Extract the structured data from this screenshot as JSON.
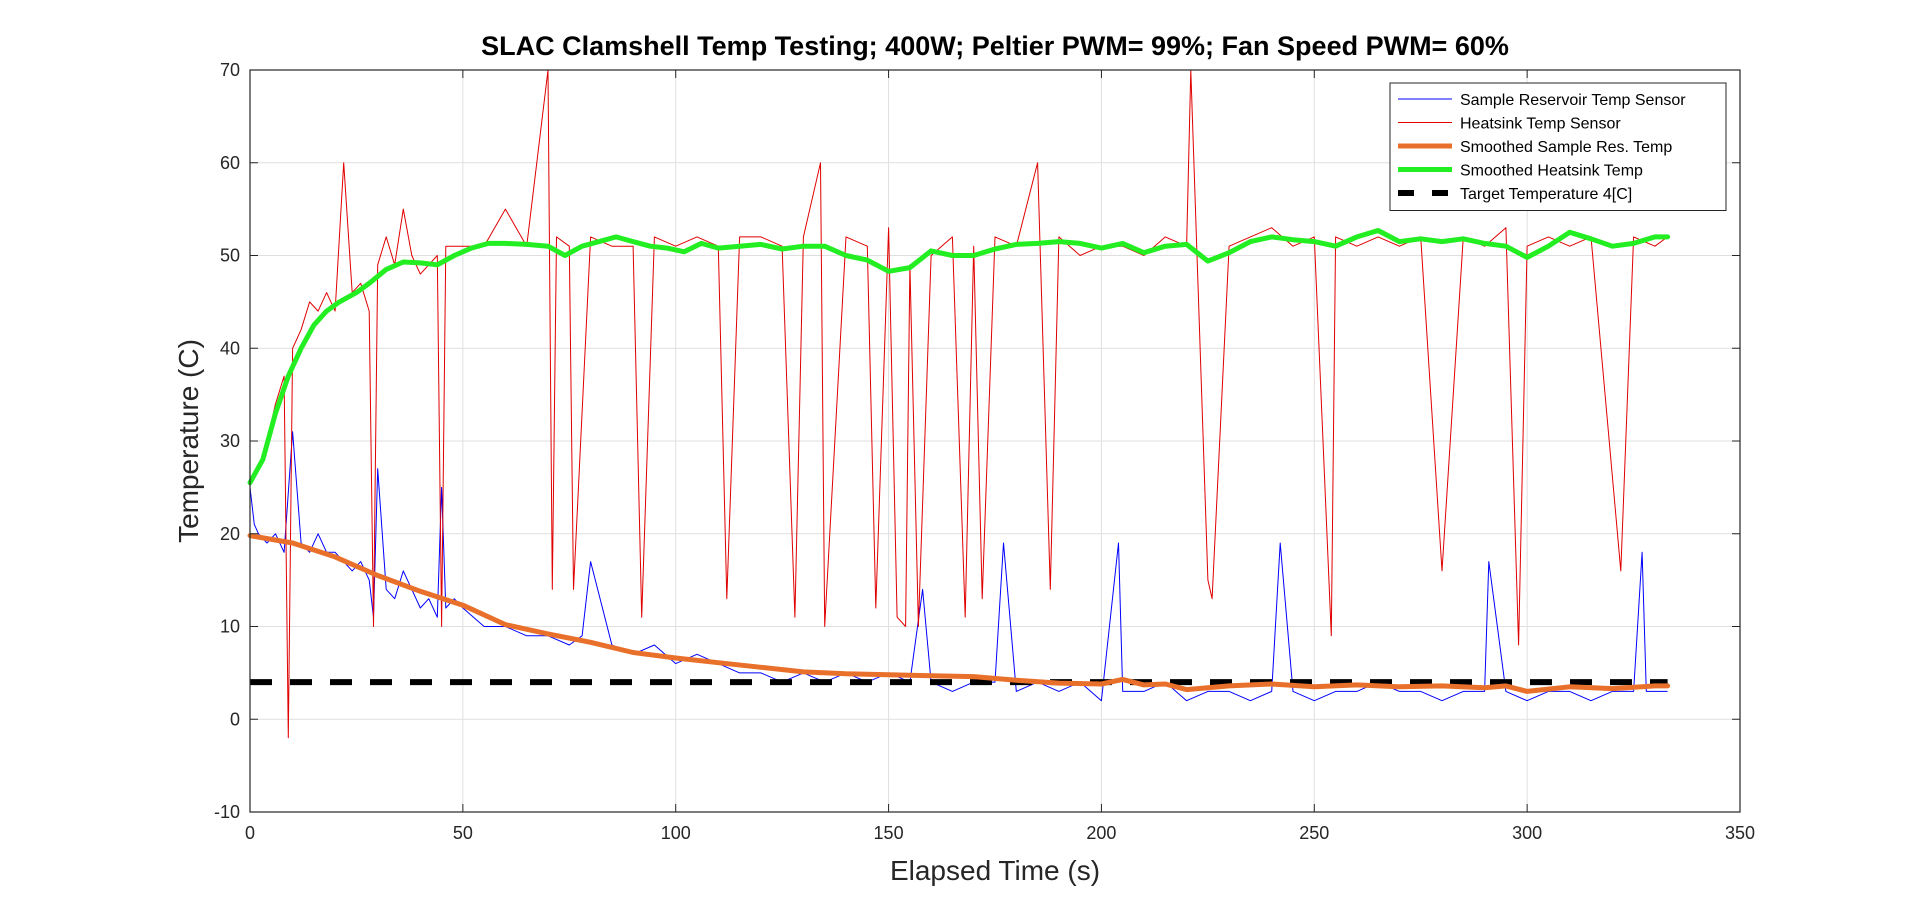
{
  "chart_data": {
    "type": "line",
    "title": "SLAC Clamshell Temp Testing; 400W; Peltier PWM= 99%; Fan Speed PWM= 60%",
    "xlabel": "Elapsed Time (s)",
    "ylabel": "Temperature (C)",
    "xlim": [
      0,
      350
    ],
    "ylim": [
      -10,
      70
    ],
    "xticks": [
      0,
      50,
      100,
      150,
      200,
      250,
      300,
      350
    ],
    "yticks": [
      -10,
      0,
      10,
      20,
      30,
      40,
      50,
      60,
      70
    ],
    "grid": true,
    "legend_position": "top-right",
    "series": [
      {
        "name": "Sample Reservoir Temp Sensor",
        "color": "#0000ff",
        "style": "thin",
        "x": [
          0,
          1,
          2,
          4,
          6,
          8,
          10,
          12,
          14,
          16,
          18,
          20,
          22,
          24,
          26,
          28,
          29,
          30,
          32,
          34,
          36,
          38,
          40,
          42,
          44,
          45,
          46,
          48,
          50,
          55,
          60,
          65,
          70,
          75,
          78,
          80,
          85,
          90,
          95,
          100,
          105,
          110,
          115,
          120,
          125,
          130,
          135,
          140,
          145,
          150,
          155,
          158,
          160,
          165,
          170,
          175,
          177,
          180,
          185,
          190,
          195,
          200,
          204,
          205,
          210,
          215,
          220,
          225,
          230,
          235,
          240,
          242,
          245,
          250,
          255,
          260,
          265,
          270,
          275,
          280,
          285,
          290,
          291,
          295,
          300,
          305,
          310,
          315,
          320,
          325,
          327,
          328,
          333
        ],
        "y": [
          25,
          21,
          20,
          19,
          20,
          18,
          31,
          19,
          18,
          20,
          18,
          18,
          17,
          16,
          17,
          15,
          11,
          27,
          14,
          13,
          16,
          14,
          12,
          13,
          11,
          25,
          12,
          13,
          12,
          10,
          10,
          9,
          9,
          8,
          9,
          17,
          8,
          7,
          8,
          6,
          7,
          6,
          5,
          5,
          4,
          5,
          4,
          5,
          4,
          5,
          4,
          14,
          4,
          3,
          4,
          4,
          19,
          3,
          4,
          3,
          4,
          2,
          19,
          3,
          3,
          4,
          2,
          3,
          3,
          2,
          3,
          19,
          3,
          2,
          3,
          3,
          4,
          3,
          3,
          2,
          3,
          3,
          17,
          3,
          2,
          3,
          3,
          2,
          3,
          3,
          18,
          3,
          3
        ]
      },
      {
        "name": "Heatsink Temp Sensor",
        "color": "#e00000",
        "style": "thin",
        "x": [
          0,
          2,
          4,
          6,
          8,
          9,
          10,
          12,
          14,
          16,
          18,
          20,
          22,
          24,
          26,
          28,
          29,
          30,
          32,
          34,
          36,
          38,
          40,
          44,
          45,
          46,
          50,
          55,
          60,
          65,
          70,
          71,
          72,
          75,
          76,
          80,
          85,
          90,
          92,
          95,
          100,
          105,
          110,
          112,
          115,
          120,
          125,
          128,
          130,
          134,
          135,
          140,
          145,
          147,
          150,
          152,
          154,
          155,
          157,
          160,
          165,
          168,
          170,
          172,
          175,
          180,
          185,
          188,
          190,
          195,
          200,
          205,
          210,
          215,
          220,
          221,
          225,
          226,
          230,
          235,
          240,
          245,
          250,
          254,
          255,
          260,
          265,
          270,
          275,
          280,
          285,
          290,
          295,
          298,
          300,
          305,
          310,
          315,
          322,
          325,
          330,
          333
        ],
        "y": [
          26,
          27,
          30,
          34,
          37,
          -2,
          40,
          42,
          45,
          44,
          46,
          44,
          60,
          46,
          47,
          44,
          10,
          49,
          52,
          49,
          55,
          50,
          48,
          50,
          10,
          51,
          51,
          51,
          55,
          51,
          70,
          14,
          52,
          51,
          14,
          52,
          51,
          51,
          11,
          52,
          51,
          52,
          51,
          13,
          52,
          52,
          51,
          11,
          52,
          60,
          10,
          52,
          51,
          12,
          53,
          11,
          10,
          49,
          10,
          50,
          52,
          11,
          51,
          13,
          52,
          51,
          60,
          14,
          52,
          50,
          51,
          51,
          50,
          52,
          51,
          70,
          15,
          13,
          51,
          52,
          53,
          51,
          52,
          9,
          52,
          51,
          52,
          51,
          52,
          16,
          52,
          51,
          53,
          8,
          51,
          52,
          51,
          52,
          16,
          52,
          51,
          52
        ]
      },
      {
        "name": "Smoothed Sample Res. Temp",
        "color": "#e8702a",
        "style": "thick",
        "x": [
          0,
          10,
          20,
          30,
          40,
          50,
          60,
          70,
          80,
          90,
          100,
          110,
          120,
          130,
          140,
          150,
          160,
          170,
          180,
          190,
          200,
          205,
          210,
          215,
          220,
          225,
          230,
          240,
          250,
          260,
          270,
          280,
          290,
          295,
          300,
          310,
          320,
          330,
          333
        ],
        "y": [
          19.8,
          19,
          17.5,
          15.5,
          13.8,
          12.3,
          10.2,
          9.2,
          8.3,
          7.2,
          6.6,
          6.1,
          5.6,
          5.1,
          4.9,
          4.8,
          4.7,
          4.6,
          4.2,
          3.9,
          3.8,
          4.3,
          3.7,
          3.8,
          3.2,
          3.4,
          3.6,
          3.8,
          3.5,
          3.7,
          3.5,
          3.6,
          3.4,
          3.6,
          3,
          3.5,
          3.3,
          3.6,
          3.6
        ]
      },
      {
        "name": "Smoothed Heatsink Temp",
        "color": "#22ee22",
        "style": "thick",
        "x": [
          0,
          3,
          6,
          9,
          12,
          15,
          18,
          21,
          25,
          28,
          32,
          36,
          40,
          44,
          48,
          52,
          56,
          60,
          65,
          70,
          74,
          78,
          82,
          86,
          90,
          94,
          98,
          102,
          106,
          110,
          115,
          120,
          125,
          130,
          135,
          140,
          145,
          150,
          155,
          160,
          165,
          170,
          175,
          180,
          185,
          190,
          195,
          200,
          205,
          210,
          215,
          220,
          225,
          230,
          235,
          240,
          245,
          250,
          255,
          260,
          265,
          270,
          275,
          280,
          285,
          290,
          295,
          300,
          305,
          310,
          315,
          320,
          325,
          330,
          333
        ],
        "y": [
          25.5,
          28,
          33,
          37,
          40,
          42.5,
          44,
          45,
          46,
          47,
          48.5,
          49.3,
          49.2,
          49,
          50,
          50.8,
          51.3,
          51.3,
          51.2,
          51,
          50,
          51,
          51.5,
          52,
          51.5,
          51,
          50.8,
          50.4,
          51.3,
          50.8,
          51,
          51.2,
          50.7,
          51,
          51,
          50,
          49.5,
          48.3,
          48.7,
          50.5,
          50,
          50,
          50.7,
          51.2,
          51.3,
          51.5,
          51.3,
          50.8,
          51.3,
          50.3,
          51,
          51.2,
          49.4,
          50.3,
          51.5,
          52,
          51.7,
          51.5,
          51,
          52,
          52.7,
          51.5,
          51.8,
          51.5,
          51.8,
          51.3,
          51,
          49.8,
          51,
          52.5,
          51.8,
          51,
          51.3,
          52,
          52
        ]
      },
      {
        "name": "Target Temperature 4[C]",
        "color": "#000000",
        "style": "dashed",
        "x": [
          0,
          333
        ],
        "y": [
          4,
          4
        ]
      }
    ]
  }
}
